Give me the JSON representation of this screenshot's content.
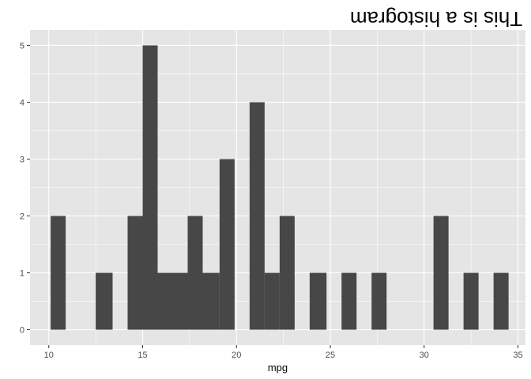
{
  "chart_data": {
    "type": "bar",
    "title": "This is a histogram",
    "title_orientation": "upside-down",
    "xlabel": "mpg",
    "ylabel": "",
    "xlim": [
      9.0,
      35.4
    ],
    "ylim": [
      -0.27,
      5.27
    ],
    "x_ticks": [
      10,
      15,
      20,
      25,
      30,
      35
    ],
    "y_ticks": [
      0,
      1,
      2,
      3,
      4,
      5
    ],
    "bin_width": 0.81,
    "grid": true,
    "bins": [
      {
        "x_start": 10.1,
        "x_end": 10.9,
        "count": 2
      },
      {
        "x_start": 12.5,
        "x_end": 13.4,
        "count": 1
      },
      {
        "x_start": 14.2,
        "x_end": 15.0,
        "count": 2
      },
      {
        "x_start": 15.0,
        "x_end": 15.8,
        "count": 5
      },
      {
        "x_start": 15.8,
        "x_end": 16.6,
        "count": 1
      },
      {
        "x_start": 16.6,
        "x_end": 17.4,
        "count": 1
      },
      {
        "x_start": 17.4,
        "x_end": 18.2,
        "count": 2
      },
      {
        "x_start": 18.2,
        "x_end": 19.1,
        "count": 1
      },
      {
        "x_start": 19.1,
        "x_end": 19.9,
        "count": 3
      },
      {
        "x_start": 20.7,
        "x_end": 21.5,
        "count": 4
      },
      {
        "x_start": 21.5,
        "x_end": 22.3,
        "count": 1
      },
      {
        "x_start": 22.3,
        "x_end": 23.1,
        "count": 2
      },
      {
        "x_start": 23.9,
        "x_end": 24.8,
        "count": 1
      },
      {
        "x_start": 25.6,
        "x_end": 26.4,
        "count": 1
      },
      {
        "x_start": 27.2,
        "x_end": 28.0,
        "count": 1
      },
      {
        "x_start": 30.5,
        "x_end": 31.3,
        "count": 2
      },
      {
        "x_start": 32.1,
        "x_end": 32.9,
        "count": 1
      },
      {
        "x_start": 33.7,
        "x_end": 34.5,
        "count": 1
      }
    ],
    "colors": {
      "panel": "#e5e5e5",
      "grid_major": "#ffffff",
      "bar": "#474747",
      "tick": "#333333",
      "tick_text": "#4d4d4d"
    }
  }
}
